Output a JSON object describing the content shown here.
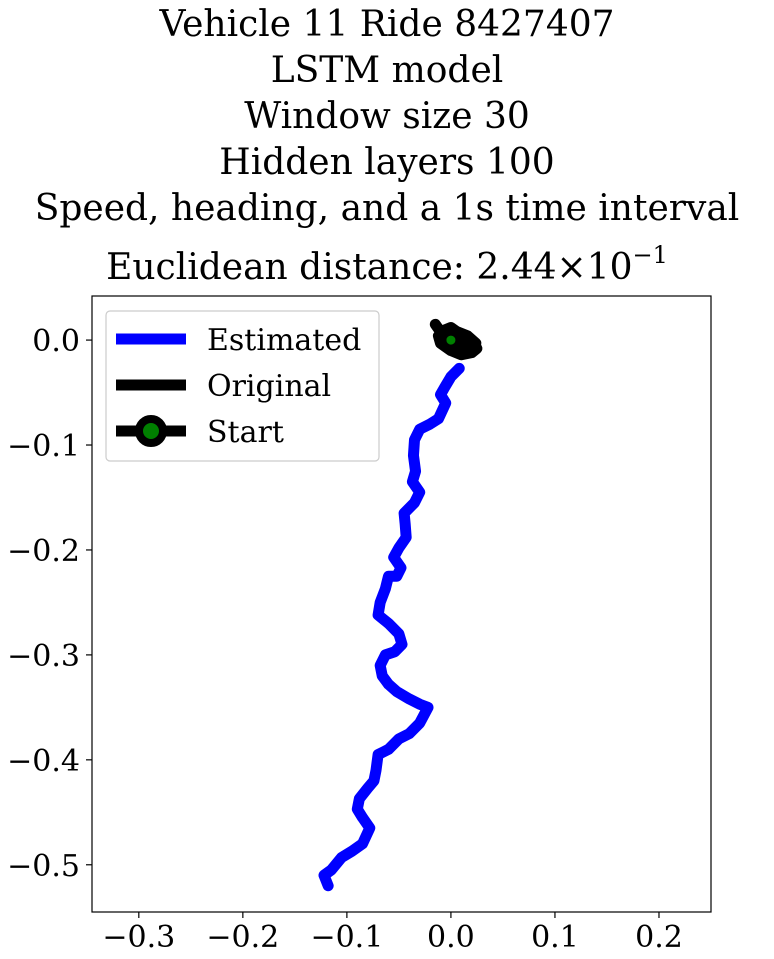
{
  "chart_data": {
    "type": "line",
    "title_lines": [
      "Vehicle 11 Ride 8427407",
      "LSTM model",
      "Window size 30",
      "Hidden layers 100",
      "Speed, heading, and a 1s time interval"
    ],
    "distance_label": "Euclidean distance: ",
    "distance_mantissa": "2.44",
    "distance_times": "×",
    "distance_base": "10",
    "distance_exponent": "−1",
    "xlim": [
      -0.345,
      0.25
    ],
    "ylim": [
      -0.545,
      0.042
    ],
    "x_ticks": [
      -0.3,
      -0.2,
      -0.1,
      0.0,
      0.1,
      0.2
    ],
    "x_tick_labels": [
      "−0.3",
      "−0.2",
      "−0.1",
      "0.0",
      "0.1",
      "0.2"
    ],
    "y_ticks": [
      0.0,
      -0.1,
      -0.2,
      -0.3,
      -0.4,
      -0.5
    ],
    "y_tick_labels": [
      "0.0",
      "−0.1",
      "−0.2",
      "−0.3",
      "−0.4",
      "−0.5"
    ],
    "grid": false,
    "legend_position": "top-left",
    "series": [
      {
        "name": "Estimated",
        "color": "#0000ff",
        "x": [
          0.008,
          0.0,
          -0.006,
          -0.01,
          -0.005,
          -0.012,
          -0.02,
          -0.03,
          -0.035,
          -0.036,
          -0.034,
          -0.037,
          -0.03,
          -0.035,
          -0.045,
          -0.044,
          -0.043,
          -0.05,
          -0.055,
          -0.048,
          -0.052,
          -0.06,
          -0.063,
          -0.068,
          -0.07,
          -0.06,
          -0.05,
          -0.047,
          -0.054,
          -0.063,
          -0.068,
          -0.066,
          -0.06,
          -0.052,
          -0.04,
          -0.03,
          -0.022,
          -0.03,
          -0.04,
          -0.05,
          -0.06,
          -0.07,
          -0.072,
          -0.074,
          -0.08,
          -0.088,
          -0.09,
          -0.085,
          -0.078,
          -0.085,
          -0.095,
          -0.105,
          -0.115,
          -0.122,
          -0.118
        ],
        "y": [
          -0.027,
          -0.035,
          -0.045,
          -0.052,
          -0.06,
          -0.075,
          -0.08,
          -0.085,
          -0.095,
          -0.11,
          -0.125,
          -0.135,
          -0.145,
          -0.155,
          -0.165,
          -0.175,
          -0.188,
          -0.198,
          -0.207,
          -0.217,
          -0.225,
          -0.225,
          -0.237,
          -0.25,
          -0.262,
          -0.27,
          -0.28,
          -0.29,
          -0.297,
          -0.3,
          -0.31,
          -0.32,
          -0.328,
          -0.335,
          -0.342,
          -0.347,
          -0.35,
          -0.365,
          -0.375,
          -0.38,
          -0.39,
          -0.395,
          -0.41,
          -0.42,
          -0.427,
          -0.437,
          -0.447,
          -0.455,
          -0.465,
          -0.48,
          -0.487,
          -0.493,
          -0.505,
          -0.51,
          -0.52
        ]
      },
      {
        "name": "Original",
        "color": "#000000",
        "x": [
          -0.015,
          -0.01,
          0.0,
          0.01,
          0.02,
          0.025,
          0.02,
          0.01,
          0.0,
          -0.01,
          -0.012,
          -0.005,
          0.005,
          0.015,
          0.022,
          0.018,
          0.008,
          -0.002,
          -0.01,
          -0.005,
          0.006,
          0.016,
          0.024,
          0.02,
          0.01,
          0.0
        ],
        "y": [
          0.015,
          0.008,
          0.012,
          0.005,
          0.0,
          -0.008,
          -0.012,
          -0.014,
          -0.01,
          -0.003,
          0.004,
          0.01,
          0.006,
          0.003,
          -0.004,
          -0.01,
          -0.012,
          -0.008,
          -0.002,
          0.002,
          0.008,
          0.004,
          -0.003,
          -0.008,
          -0.006,
          0.0
        ]
      }
    ],
    "start": {
      "name": "Start",
      "x": 0.0,
      "y": 0.0,
      "marker_color": "#008000",
      "edge_color": "#000000"
    }
  }
}
